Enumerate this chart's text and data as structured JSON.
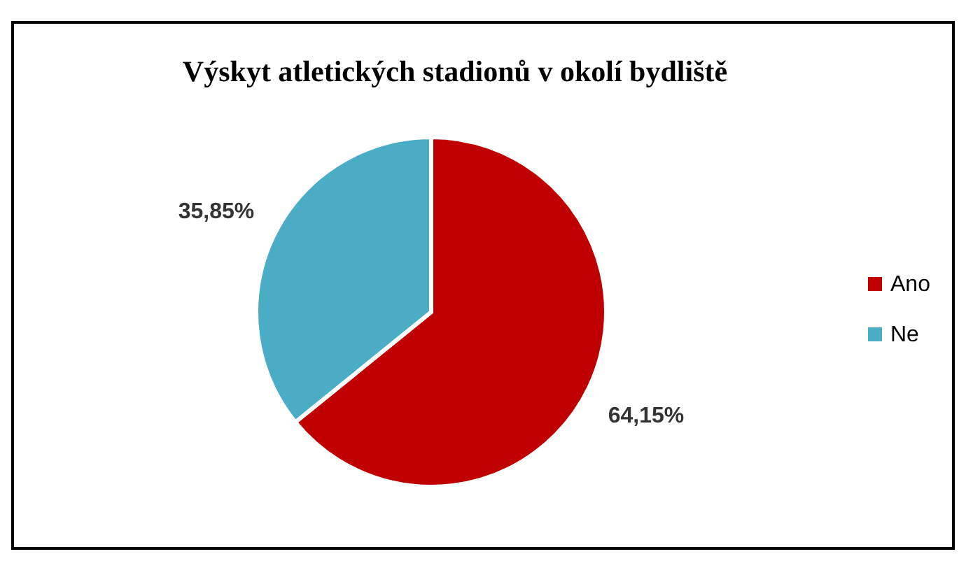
{
  "chart_data": {
    "type": "pie",
    "title": "Výskyt atletických stadionů v okolí bydliště",
    "categories": [
      "Ano",
      "Ne"
    ],
    "values": [
      64.15,
      35.85
    ],
    "value_labels": [
      "64,15%",
      "35,85%"
    ],
    "colors": [
      "#c00000",
      "#4bacc6"
    ],
    "legend": "right"
  }
}
